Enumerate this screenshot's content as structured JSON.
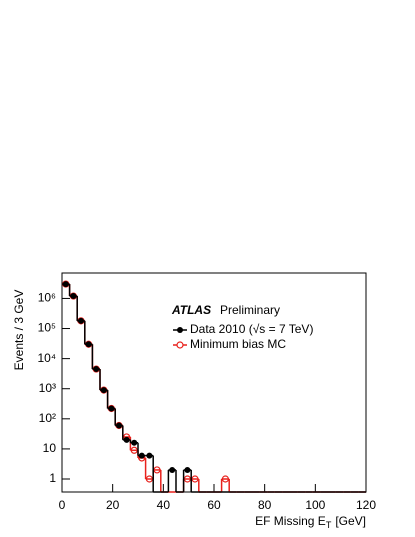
{
  "chart_data": {
    "type": "histogram",
    "log_y": true,
    "annotation_bold": "ATLAS",
    "annotation": "Preliminary",
    "y_label": "Events / 3 GeV",
    "x_label": "EF Missing E",
    "x_label_subscript": "T",
    "x_label_unit": "[GeV]",
    "bins": [
      0,
      3,
      6,
      9,
      12,
      15,
      18,
      21,
      24,
      27,
      30,
      33,
      36,
      39,
      42,
      45,
      48,
      51,
      54,
      57,
      60,
      63,
      66,
      69,
      72,
      75,
      78,
      81,
      84,
      87,
      90,
      93,
      96,
      99,
      102,
      105,
      108,
      111,
      114,
      117,
      120
    ],
    "series": [
      {
        "name": "Data 2010 (√s = 7 TeV)",
        "color": "#000000",
        "style": "points",
        "values": [
          3000000,
          1200000,
          180000,
          30000,
          4500,
          900,
          220,
          60,
          20,
          16,
          6,
          6,
          0,
          0,
          2,
          0,
          2,
          0,
          0,
          0,
          0,
          0,
          0,
          0,
          0,
          0,
          0,
          0,
          0,
          0,
          0,
          0,
          0,
          0,
          0,
          0,
          0,
          0,
          0,
          0
        ]
      },
      {
        "name": "Minimum bias MC",
        "color": "#e8211c",
        "style": "step",
        "values": [
          3000000,
          1200000,
          180000,
          30000,
          4500,
          900,
          220,
          60,
          25,
          9,
          5,
          1,
          2,
          0,
          0,
          0,
          1,
          1,
          0,
          0,
          0,
          1,
          0,
          0,
          0,
          0,
          0,
          0,
          0,
          0,
          0,
          0,
          0,
          0,
          0,
          0,
          0,
          0,
          0,
          0
        ]
      }
    ],
    "xlim": [
      0,
      120
    ],
    "xticks": [
      0,
      20,
      40,
      60,
      80,
      100,
      120
    ],
    "ylim": [
      0.37,
      7000000
    ],
    "yticks": [
      1,
      10,
      {
        "value": 100,
        "label": "10²"
      },
      {
        "value": 1000,
        "label": "10³"
      },
      {
        "value": 10000,
        "label": "10⁴"
      },
      {
        "value": 100000,
        "label": "10⁵"
      },
      {
        "value": 1000000,
        "label": "10⁶"
      }
    ]
  }
}
